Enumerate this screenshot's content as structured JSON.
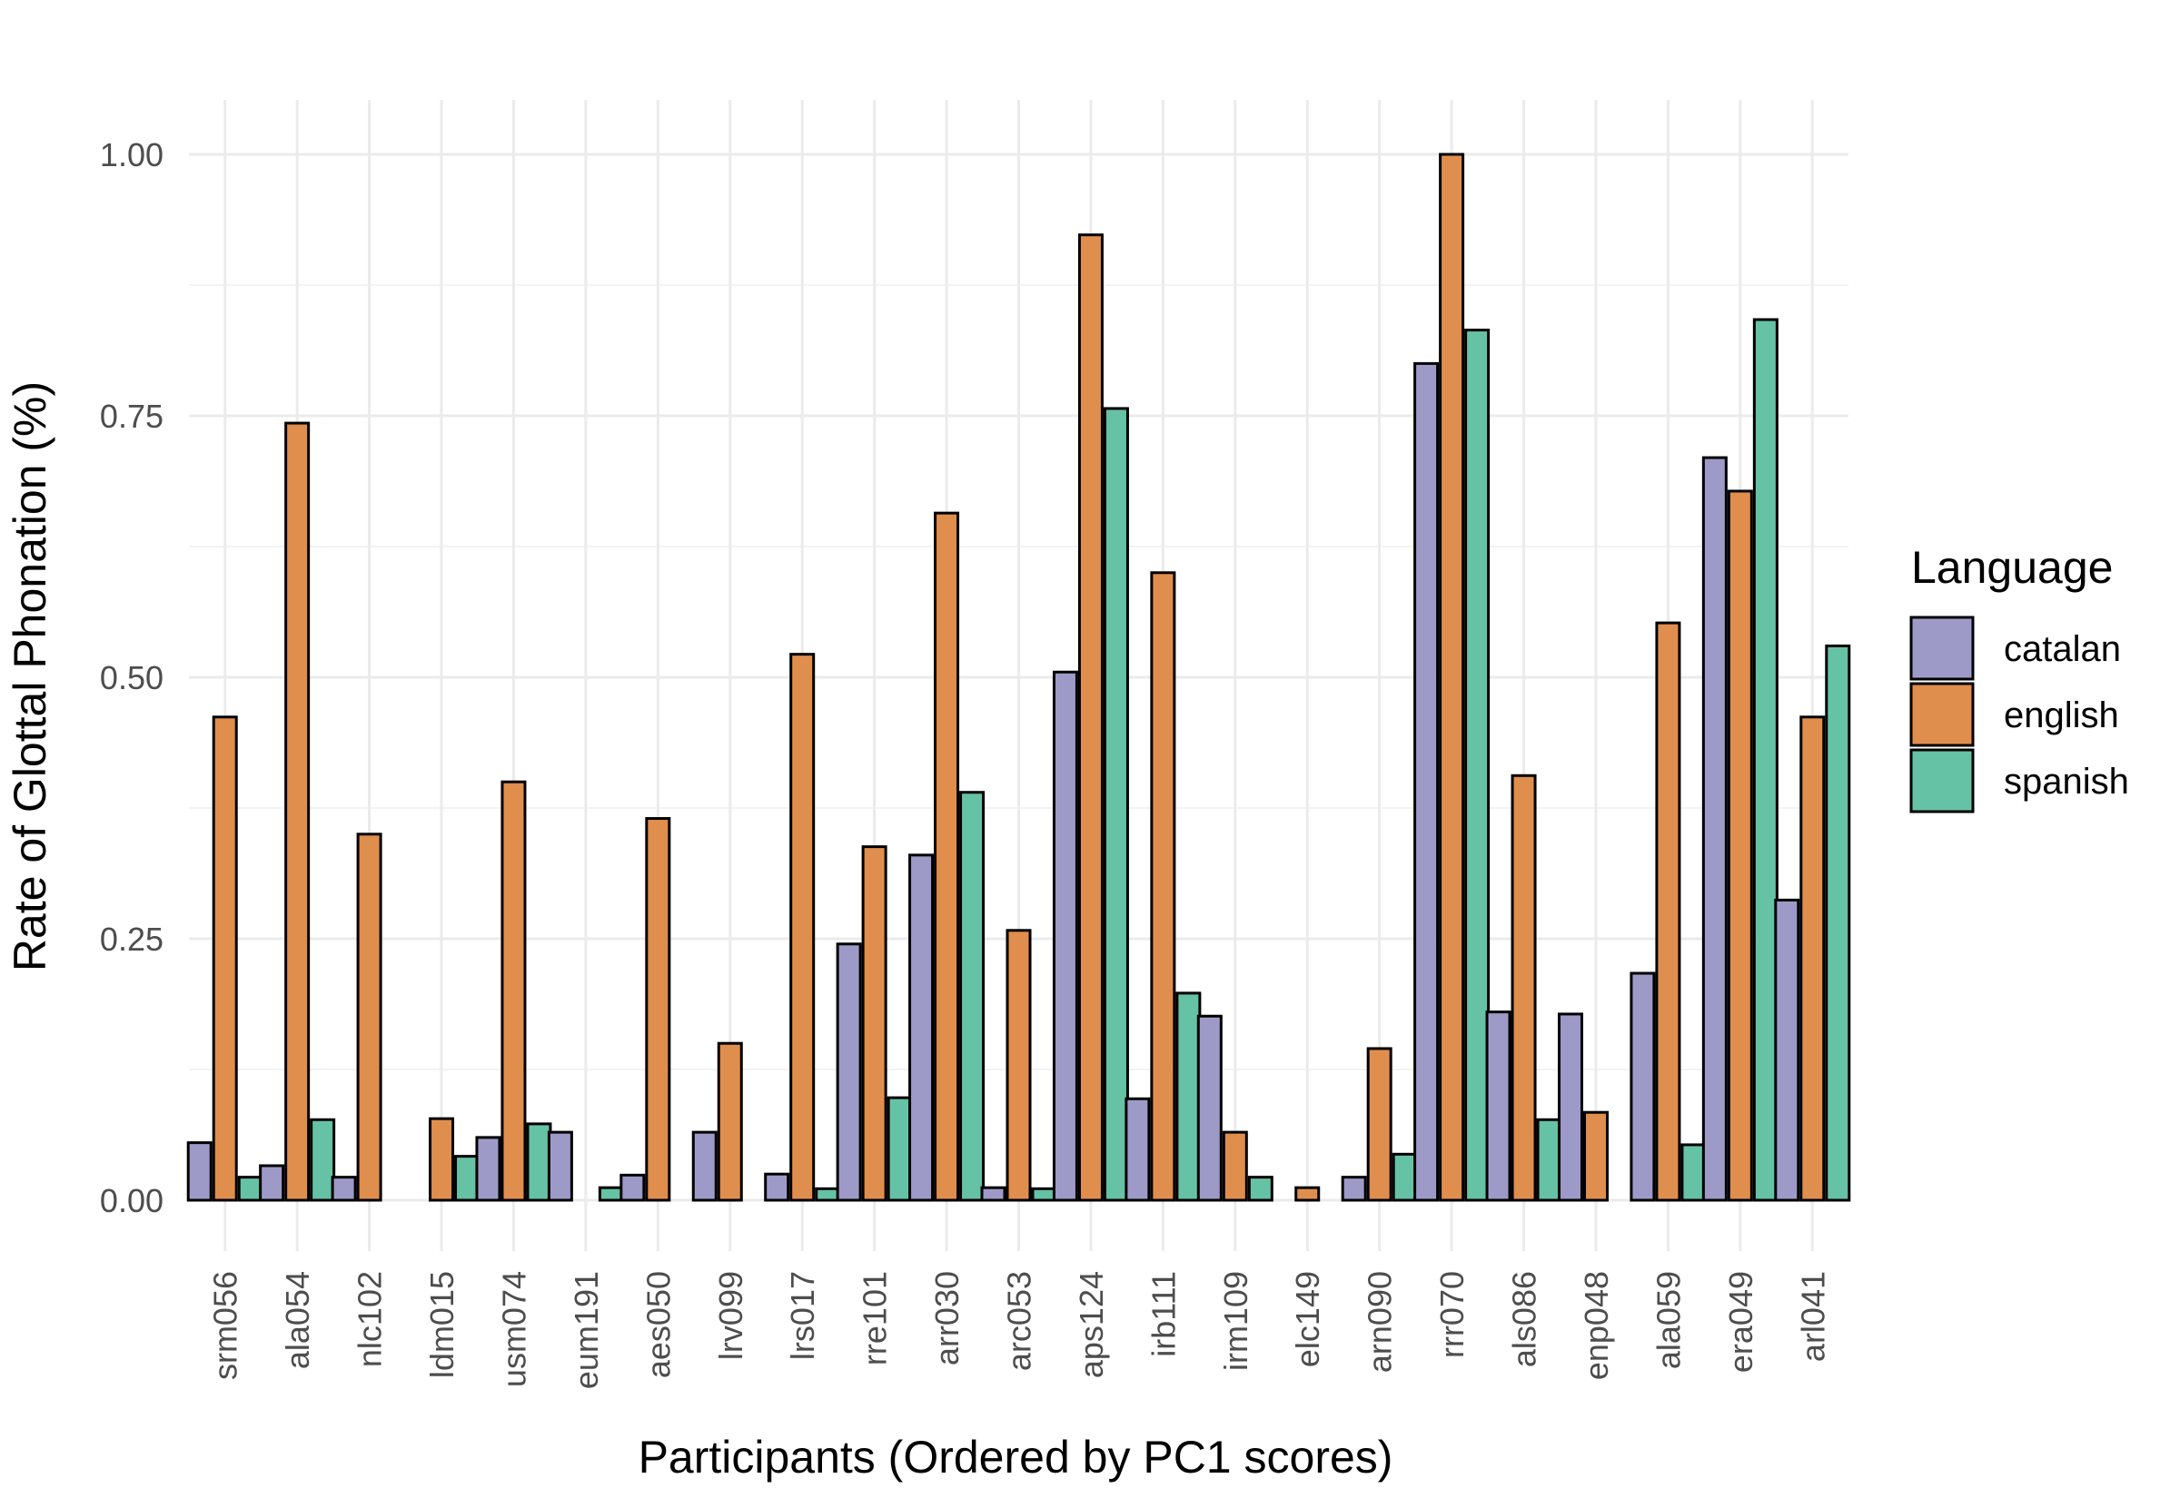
{
  "chart_data": {
    "type": "bar",
    "xlabel": "Participants (Ordered by PC1 scores)",
    "ylabel": "Rate of Glottal Phonation (%)",
    "ylim": [
      -0.03,
      1.05
    ],
    "y_ticks": [
      0.0,
      0.25,
      0.5,
      0.75,
      1.0
    ],
    "y_tick_labels": [
      "0.00",
      "0.25",
      "0.50",
      "0.75",
      "1.00"
    ],
    "grid": true,
    "legend": {
      "title": "Language",
      "position": "right"
    },
    "categories": [
      "srm056",
      "ala054",
      "nlc102",
      "ldm015",
      "usm074",
      "eum191",
      "aes050",
      "lrv099",
      "lrs017",
      "rre101",
      "arr030",
      "arc053",
      "aps124",
      "irb111",
      "irm109",
      "elc149",
      "arn090",
      "rrr070",
      "als086",
      "enp048",
      "ala059",
      "era049",
      "arl041"
    ],
    "series": [
      {
        "name": "catalan",
        "color": "#9e9ac8",
        "values": [
          0.055,
          0.033,
          0.022,
          0.0,
          0.06,
          0.065,
          0.024,
          0.065,
          0.025,
          0.245,
          0.33,
          0.012,
          0.505,
          0.097,
          0.176,
          0.0,
          0.022,
          0.8,
          0.18,
          0.178,
          0.217,
          0.71,
          0.287
        ]
      },
      {
        "name": "english",
        "color": "#e08e4e",
        "values": [
          0.462,
          0.743,
          0.35,
          0.078,
          0.4,
          0.0,
          0.365,
          0.15,
          0.522,
          0.338,
          0.657,
          0.258,
          0.923,
          0.6,
          0.065,
          0.012,
          0.145,
          1.0,
          0.406,
          0.084,
          0.552,
          0.678,
          0.462
        ]
      },
      {
        "name": "spanish",
        "color": "#66c2a5",
        "values": [
          0.022,
          0.077,
          0.0,
          0.042,
          0.073,
          0.012,
          0.0,
          0.0,
          0.011,
          0.098,
          0.39,
          0.011,
          0.757,
          0.198,
          0.022,
          0.0,
          0.044,
          0.832,
          0.077,
          0.0,
          0.053,
          0.842,
          0.53
        ]
      }
    ]
  }
}
